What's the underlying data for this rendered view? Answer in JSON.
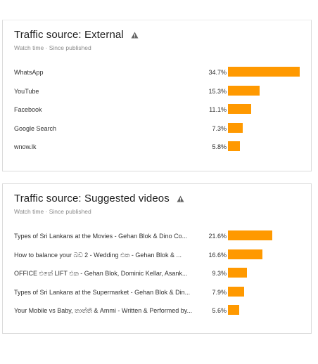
{
  "colors": {
    "bar": "#ff9900",
    "warning_icon": "#666666"
  },
  "external": {
    "title": "Traffic source: External",
    "subtitle": "Watch time · Since published",
    "rows": [
      {
        "label": "WhatsApp",
        "value": "34.7%",
        "share": 34.7
      },
      {
        "label": "YouTube",
        "value": "15.3%",
        "share": 15.3
      },
      {
        "label": "Facebook",
        "value": "11.1%",
        "share": 11.1
      },
      {
        "label": "Google Search",
        "value": "7.3%",
        "share": 7.3
      },
      {
        "label": "wnow.lk",
        "value": "5.8%",
        "share": 5.8
      }
    ]
  },
  "suggested": {
    "title": "Traffic source: Suggested videos",
    "subtitle": "Watch time · Since published",
    "rows": [
      {
        "label": "Types of Sri Lankans at the Movies - Gehan Blok & Dino Co...",
        "value": "21.6%",
        "share": 21.6
      },
      {
        "label": "How to balance your බඩ 2 - Wedding එක - Gehan Blok & ...",
        "value": "16.6%",
        "share": 16.6
      },
      {
        "label": "OFFICE එකේ LIFT එක - Gehan Blok, Dominic Kellar, Asank...",
        "value": "9.3%",
        "share": 9.3
      },
      {
        "label": "Types of Sri Lankans at the Supermarket - Gehan Blok & Din...",
        "value": "7.9%",
        "share": 7.9
      },
      {
        "label": "Your Mobile vs Baby, තාත්ති & Ammi - Written & Performed by...",
        "value": "5.6%",
        "share": 5.6
      }
    ]
  }
}
